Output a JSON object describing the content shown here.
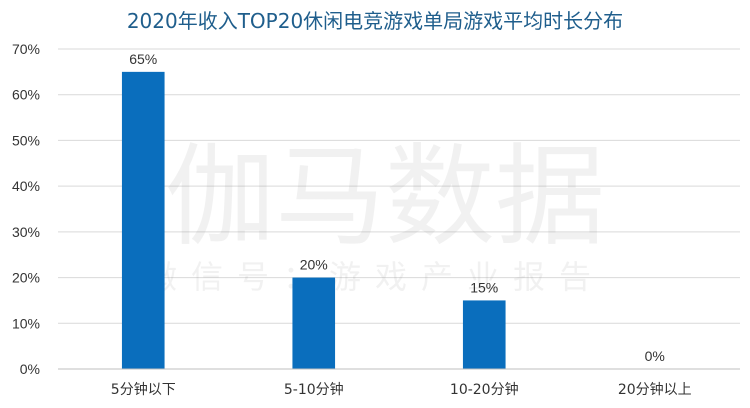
{
  "chart_data": {
    "type": "bar",
    "title": "2020年收入TOP20休闲电竞游戏单局游戏平均时长分布",
    "categories": [
      "5分钟以下",
      "5-10分钟",
      "10-20分钟",
      "20分钟以上"
    ],
    "values": [
      65,
      20,
      15,
      0
    ],
    "data_labels": [
      "65%",
      "20%",
      "15%",
      "0%"
    ],
    "y_ticks": [
      "0%",
      "10%",
      "20%",
      "30%",
      "40%",
      "50%",
      "60%",
      "70%"
    ],
    "ylim": [
      0,
      70
    ],
    "grid": true,
    "legend": "none",
    "bar_color": "#0a6ebd"
  },
  "watermark": {
    "main": "伽马数据",
    "sub": "微信号：游戏产业报告"
  }
}
